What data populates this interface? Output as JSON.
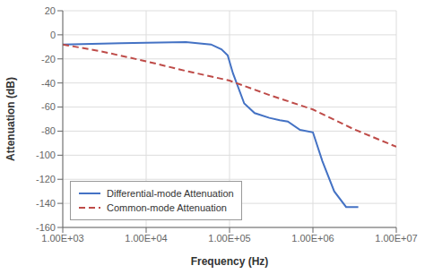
{
  "chart_data": {
    "type": "line",
    "xlabel": "Frequency (Hz)",
    "ylabel": "Attenuation (dB)",
    "log": "x",
    "grid": true,
    "legend": "lower left",
    "xlim": [
      1000,
      10000000
    ],
    "ylim": [
      -160,
      20
    ],
    "xticks": [
      {
        "value": 1000,
        "label": "1.00E+03"
      },
      {
        "value": 10000,
        "label": "1.00E+04"
      },
      {
        "value": 100000,
        "label": "1.00E+05"
      },
      {
        "value": 1000000,
        "label": "1.00E+06"
      },
      {
        "value": 10000000,
        "label": "1.00E+07"
      }
    ],
    "yticks": [
      20,
      0,
      -20,
      -40,
      -60,
      -80,
      -100,
      -120,
      -140,
      -160
    ],
    "series": [
      {
        "name": "Differential-mode Attenuation",
        "color": "#4472C4",
        "line_style": "solid",
        "x": [
          1000,
          5000,
          10000,
          30000,
          60000,
          80000,
          95000,
          110000,
          150000,
          200000,
          300000,
          400000,
          500000,
          700000,
          1000000,
          1300000,
          1800000,
          2500000,
          3500000
        ],
        "values": [
          -8,
          -7,
          -6.5,
          -6,
          -8,
          -12,
          -17,
          -32,
          -57,
          -65,
          -69,
          -71,
          -72,
          -79,
          -81,
          -105,
          -130,
          -143,
          -143
        ]
      },
      {
        "name": "Common-mode Attenuation",
        "color": "#BE4B48",
        "line_style": "dashed",
        "x": [
          1000,
          3000,
          10000,
          30000,
          100000,
          300000,
          1000000,
          3000000,
          10000000
        ],
        "values": [
          -8,
          -14,
          -22,
          -30,
          -38,
          -50,
          -62,
          -78,
          -93
        ]
      }
    ]
  }
}
